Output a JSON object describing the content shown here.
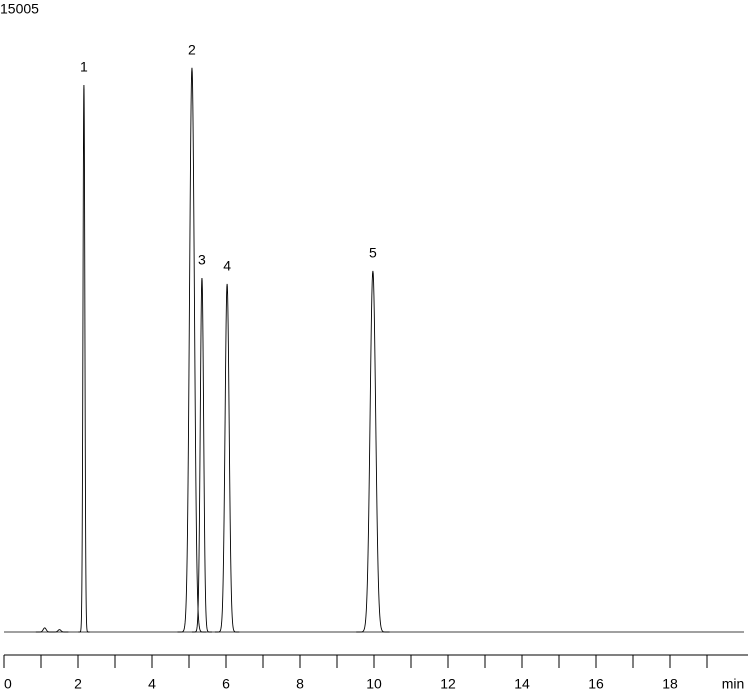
{
  "chart_data": {
    "type": "chromatogram",
    "title": "15005",
    "x_label": "min",
    "xlim": [
      0,
      20
    ],
    "xticks": [
      0,
      2,
      4,
      6,
      8,
      10,
      12,
      14,
      16,
      18
    ],
    "xminorticks": [
      1,
      3,
      5,
      7,
      9,
      11,
      13,
      15,
      17,
      19
    ],
    "ylim": [
      0,
      100
    ],
    "color": "#000000",
    "peaks": [
      {
        "label": null,
        "time": 1.1,
        "height": 0.7,
        "width": 0.04
      },
      {
        "label": null,
        "time": 1.5,
        "height": 0.4,
        "width": 0.04
      },
      {
        "label": "1",
        "time": 2.16,
        "height": 92.4,
        "width": 0.025
      },
      {
        "label": "2",
        "time": 5.08,
        "height": 95.3,
        "width": 0.065
      },
      {
        "label": "3",
        "time": 5.35,
        "height": 59.8,
        "width": 0.045
      },
      {
        "label": "4",
        "time": 6.03,
        "height": 58.8,
        "width": 0.055
      },
      {
        "label": "5",
        "time": 9.97,
        "height": 61.0,
        "width": 0.075
      }
    ]
  }
}
